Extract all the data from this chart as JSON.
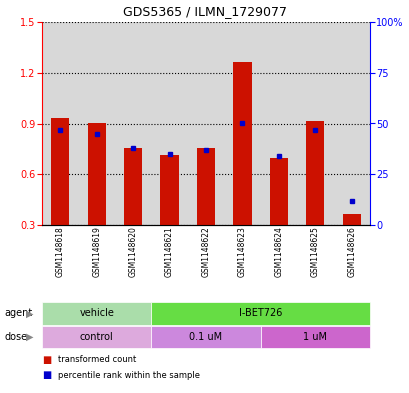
{
  "title": "GDS5365 / ILMN_1729077",
  "samples": [
    "GSM1148618",
    "GSM1148619",
    "GSM1148620",
    "GSM1148621",
    "GSM1148622",
    "GSM1148623",
    "GSM1148624",
    "GSM1148625",
    "GSM1148626"
  ],
  "red_values": [
    0.935,
    0.905,
    0.755,
    0.715,
    0.755,
    1.265,
    0.695,
    0.915,
    0.365
  ],
  "blue_values_pct": [
    47,
    45,
    38,
    35,
    37,
    50,
    34,
    47,
    12
  ],
  "ylim_left": [
    0.3,
    1.5
  ],
  "ylim_right": [
    0,
    100
  ],
  "yticks_left": [
    0.3,
    0.6,
    0.9,
    1.2,
    1.5
  ],
  "yticks_right": [
    0,
    25,
    50,
    75,
    100
  ],
  "ytick_labels_right": [
    "0",
    "25",
    "50",
    "75",
    "100%"
  ],
  "red_color": "#cc1100",
  "blue_color": "#0000cc",
  "bar_width": 0.5,
  "col_bg_color": "#d8d8d8",
  "agent_vehicle_color": "#aaddaa",
  "agent_ibet_color": "#66dd44",
  "dose_control_color": "#ddaadd",
  "dose_01_color": "#cc88dd",
  "dose_1_color": "#cc66cc"
}
